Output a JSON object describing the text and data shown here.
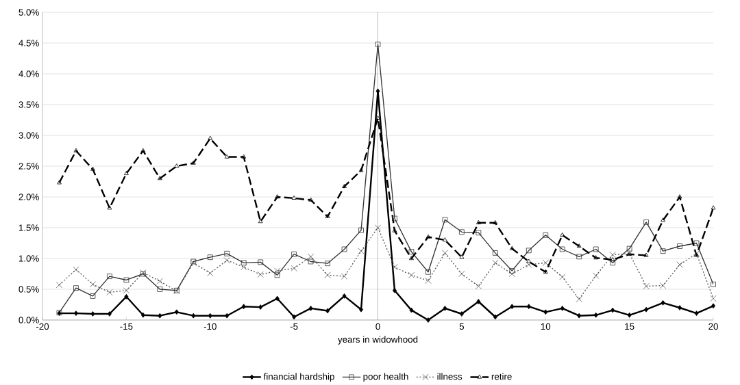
{
  "chart_data": {
    "type": "line",
    "xlabel": "years in widowhood",
    "x": [
      -19,
      -18,
      -17,
      -16,
      -15,
      -14,
      -13,
      -12,
      -11,
      -10,
      -9,
      -8,
      -7,
      -6,
      -5,
      -4,
      -3,
      -2,
      -1,
      0,
      1,
      2,
      3,
      4,
      5,
      6,
      7,
      8,
      9,
      10,
      11,
      12,
      13,
      14,
      15,
      16,
      17,
      18,
      19,
      20
    ],
    "series": [
      {
        "name": "financial hardship",
        "color": "#000000",
        "marker": "diamond",
        "line_style": "solid",
        "values": [
          0.11,
          0.11,
          0.1,
          0.1,
          0.38,
          0.08,
          0.07,
          0.13,
          0.07,
          0.07,
          0.07,
          0.22,
          0.21,
          0.35,
          0.05,
          0.19,
          0.15,
          0.39,
          0.17,
          3.72,
          0.48,
          0.16,
          0.0,
          0.19,
          0.1,
          0.3,
          0.05,
          0.22,
          0.22,
          0.13,
          0.19,
          0.07,
          0.08,
          0.16,
          0.08,
          0.17,
          0.28,
          0.2,
          0.11,
          0.23
        ]
      },
      {
        "name": "poor health",
        "color": "#333333",
        "marker": "square",
        "line_style": "solid",
        "values": [
          0.12,
          0.52,
          0.39,
          0.71,
          0.65,
          0.75,
          0.5,
          0.48,
          0.95,
          1.02,
          1.08,
          0.93,
          0.94,
          0.73,
          1.07,
          0.95,
          0.92,
          1.15,
          1.46,
          4.48,
          1.65,
          1.11,
          0.78,
          1.63,
          1.43,
          1.42,
          1.09,
          0.8,
          1.13,
          1.38,
          1.15,
          1.03,
          1.15,
          0.93,
          1.16,
          1.59,
          1.12,
          1.2,
          1.25,
          0.58
        ]
      },
      {
        "name": "illness",
        "color": "#555555",
        "marker": "cross",
        "line_style": "dotted",
        "values": [
          0.57,
          0.82,
          0.58,
          0.45,
          0.48,
          0.77,
          0.63,
          0.47,
          0.93,
          0.76,
          0.97,
          0.86,
          0.74,
          0.8,
          0.84,
          1.03,
          0.73,
          0.71,
          1.12,
          1.5,
          0.86,
          0.73,
          0.64,
          1.09,
          0.75,
          0.55,
          0.93,
          0.75,
          0.9,
          0.93,
          0.7,
          0.34,
          0.72,
          1.06,
          1.08,
          0.55,
          0.56,
          0.9,
          1.08,
          0.35
        ]
      },
      {
        "name": "retire",
        "color": "#000000",
        "marker": "triangle",
        "line_style": "dashed",
        "values": [
          2.23,
          2.75,
          2.45,
          1.82,
          2.38,
          2.75,
          2.3,
          2.5,
          2.55,
          2.95,
          2.65,
          2.65,
          1.6,
          2.0,
          1.98,
          1.95,
          1.68,
          2.17,
          2.43,
          3.28,
          1.45,
          1.0,
          1.35,
          1.3,
          1.02,
          1.58,
          1.58,
          1.16,
          0.95,
          0.78,
          1.38,
          1.2,
          1.01,
          0.98,
          1.07,
          1.05,
          1.62,
          2.0,
          1.05,
          1.82
        ]
      }
    ],
    "xlim": [
      -20,
      20
    ],
    "xticks": [
      -20,
      -15,
      -10,
      -5,
      0,
      5,
      10,
      15,
      20
    ],
    "ylim": [
      0,
      5
    ],
    "yticks": [
      {
        "value": 0,
        "label": "0.0%"
      },
      {
        "value": 0.5,
        "label": "0.5%"
      },
      {
        "value": 1,
        "label": "1.0%"
      },
      {
        "value": 1.5,
        "label": "1.5%"
      },
      {
        "value": 2,
        "label": "2.0%"
      },
      {
        "value": 2.5,
        "label": "2.5%"
      },
      {
        "value": 3,
        "label": "3.0%"
      },
      {
        "value": 3.5,
        "label": "3.5%"
      },
      {
        "value": 4,
        "label": "4.0%"
      },
      {
        "value": 4.5,
        "label": "4.5%"
      },
      {
        "value": 5,
        "label": "5.0%"
      }
    ],
    "grid": "y",
    "legend": "bottom"
  }
}
